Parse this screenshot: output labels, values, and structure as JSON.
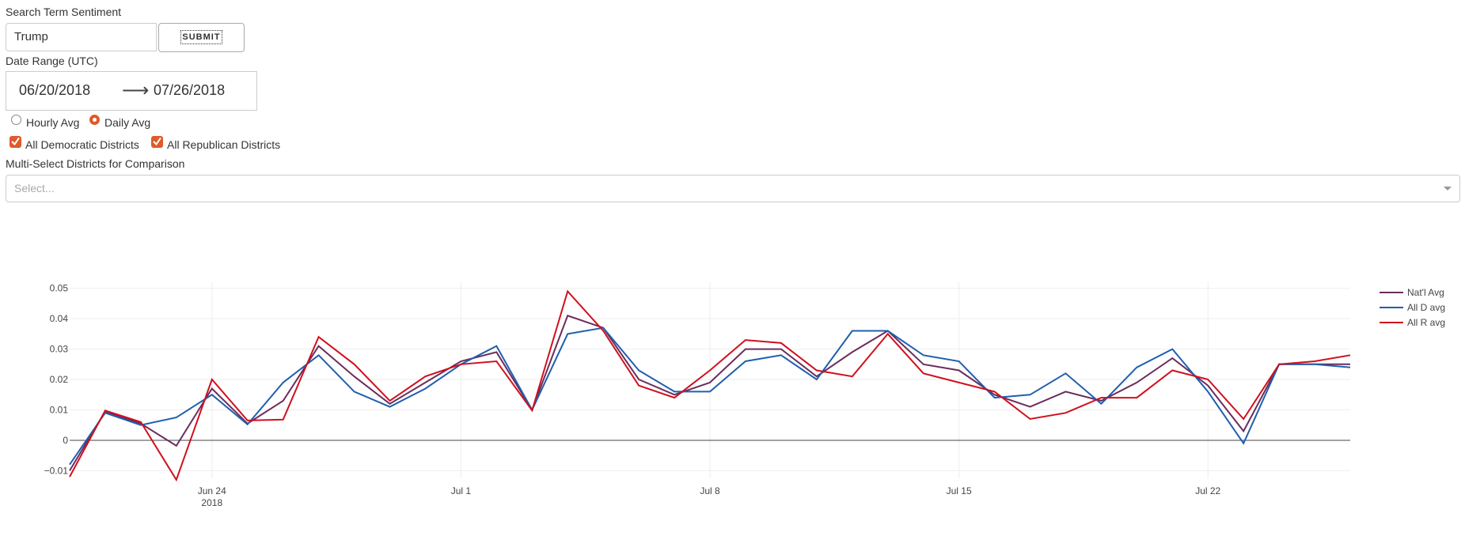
{
  "search": {
    "label": "Search Term Sentiment",
    "value": "Trump",
    "submit_label": "SUBMIT"
  },
  "date_range": {
    "label": "Date Range (UTC)",
    "start": "06/20/2018",
    "end": "07/26/2018",
    "arrow": "⟶"
  },
  "averaging": {
    "options": [
      {
        "label": "Hourly Avg",
        "selected": false
      },
      {
        "label": "Daily Avg",
        "selected": true
      }
    ]
  },
  "district_filters": [
    {
      "label": "All Democratic Districts",
      "checked": true
    },
    {
      "label": "All Republican Districts",
      "checked": true
    }
  ],
  "compare": {
    "label": "Multi-Select Districts for Comparison",
    "placeholder": "Select..."
  },
  "colors": {
    "accent": "#e05a2b",
    "natl": "#6b2d5c",
    "dem": "#1f5fad",
    "rep": "#d0101d"
  },
  "chart_data": {
    "type": "line",
    "x": [
      "2018-06-20",
      "2018-06-21",
      "2018-06-22",
      "2018-06-23",
      "2018-06-24",
      "2018-06-25",
      "2018-06-26",
      "2018-06-27",
      "2018-06-28",
      "2018-06-29",
      "2018-06-30",
      "2018-07-01",
      "2018-07-02",
      "2018-07-03",
      "2018-07-04",
      "2018-07-05",
      "2018-07-06",
      "2018-07-07",
      "2018-07-08",
      "2018-07-09",
      "2018-07-10",
      "2018-07-11",
      "2018-07-12",
      "2018-07-13",
      "2018-07-14",
      "2018-07-15",
      "2018-07-16",
      "2018-07-17",
      "2018-07-18",
      "2018-07-19",
      "2018-07-20",
      "2018-07-21",
      "2018-07-22",
      "2018-07-23",
      "2018-07-24",
      "2018-07-25",
      "2018-07-26"
    ],
    "series": [
      {
        "name": "Nat'l Avg",
        "color": "#6b2d5c",
        "values": [
          -0.01,
          0.0095,
          0.0055,
          -0.0018,
          0.017,
          0.0055,
          0.013,
          0.031,
          0.021,
          0.012,
          0.019,
          0.026,
          0.029,
          0.01,
          0.041,
          0.037,
          0.02,
          0.015,
          0.019,
          0.03,
          0.03,
          0.021,
          0.029,
          0.036,
          0.025,
          0.023,
          0.015,
          0.011,
          0.016,
          0.013,
          0.019,
          0.027,
          0.018,
          0.003,
          0.025,
          0.025,
          0.025
        ]
      },
      {
        "name": "All D avg",
        "color": "#1f5fad",
        "values": [
          -0.008,
          0.009,
          0.005,
          0.0075,
          0.015,
          0.0052,
          0.019,
          0.028,
          0.016,
          0.011,
          0.017,
          0.025,
          0.031,
          0.01,
          0.035,
          0.037,
          0.023,
          0.016,
          0.016,
          0.026,
          0.028,
          0.02,
          0.036,
          0.036,
          0.028,
          0.026,
          0.014,
          0.015,
          0.022,
          0.012,
          0.024,
          0.03,
          0.016,
          -0.001,
          0.025,
          0.025,
          0.024
        ]
      },
      {
        "name": "All R avg",
        "color": "#d0101d",
        "values": [
          -0.012,
          0.0098,
          0.006,
          -0.013,
          0.02,
          0.0065,
          0.0068,
          0.034,
          0.025,
          0.013,
          0.021,
          0.025,
          0.026,
          0.0098,
          0.049,
          0.036,
          0.018,
          0.014,
          0.023,
          0.033,
          0.032,
          0.023,
          0.021,
          0.035,
          0.022,
          0.019,
          0.016,
          0.007,
          0.009,
          0.014,
          0.014,
          0.023,
          0.02,
          0.007,
          0.025,
          0.026,
          0.028
        ]
      }
    ],
    "xticks": [
      {
        "date": "2018-06-24",
        "label": "Jun 24",
        "sublabel": "2018"
      },
      {
        "date": "2018-07-01",
        "label": "Jul 1"
      },
      {
        "date": "2018-07-08",
        "label": "Jul 8"
      },
      {
        "date": "2018-07-15",
        "label": "Jul 15"
      },
      {
        "date": "2018-07-22",
        "label": "Jul 22"
      }
    ],
    "yticks": [
      -0.01,
      0,
      0.01,
      0.02,
      0.03,
      0.04,
      0.05
    ],
    "ytick_labels": [
      "−0.01",
      "0",
      "0.01",
      "0.02",
      "0.03",
      "0.04",
      "0.05"
    ],
    "ylim": [
      -0.0125,
      0.052
    ],
    "xlim": [
      "2018-06-20",
      "2018-07-26"
    ],
    "grid": true,
    "legend": "top-right"
  }
}
